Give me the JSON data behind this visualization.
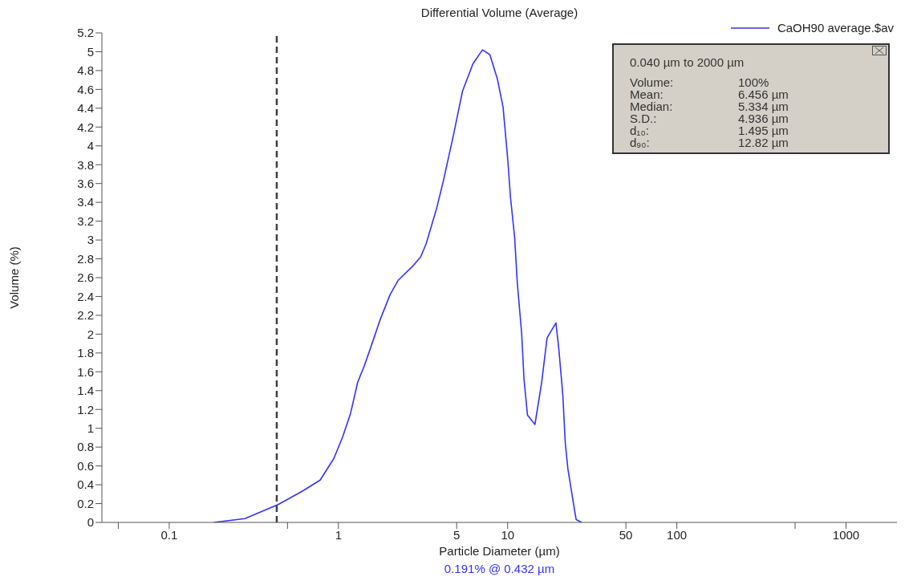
{
  "chart_data": {
    "type": "line",
    "title": "Differential Volume (Average)",
    "xlabel": "Particle Diameter (µm)",
    "ylabel": "Volume (%)",
    "log": "x",
    "xlim": [
      0.04,
      2000
    ],
    "xticks": [
      {
        "value": 0.05,
        "label": null
      },
      0.1,
      {
        "value": 0.5,
        "label": null
      },
      1,
      5,
      10,
      50,
      100,
      {
        "value": 500,
        "label": null
      },
      1000
    ],
    "ylim": [
      0,
      5.2
    ],
    "yticks": [
      0,
      0.2,
      0.4,
      0.6,
      0.8,
      1,
      1.2,
      1.4,
      1.6,
      1.8,
      2,
      2.2,
      2.4,
      2.6,
      2.8,
      3,
      3.2,
      3.4,
      3.6,
      3.8,
      4,
      4.2,
      4.4,
      4.6,
      4.8,
      5,
      5.2
    ],
    "grid": false,
    "legend": "top right",
    "marker": "none",
    "line_style": "solid",
    "series": [
      {
        "name": "CaOH90 average.$av",
        "color": "#3333ff",
        "x": [
          0.183,
          0.28,
          0.44,
          0.61,
          0.78,
          0.94,
          1.06,
          1.18,
          1.3,
          1.42,
          1.58,
          1.77,
          2.02,
          2.25,
          2.74,
          3.06,
          3.3,
          3.81,
          4.16,
          4.74,
          5.41,
          6.23,
          7.1,
          7.85,
          8.7,
          9.4,
          10,
          10.4,
          11,
          11.4,
          12.1,
          12.5,
          13.1,
          14.5,
          15.9,
          17.1,
          19.3,
          20.1,
          21.2,
          21.9,
          22.7,
          24.5,
          25.4,
          27.4
        ],
        "values": [
          0,
          0.04,
          0.19,
          0.33,
          0.45,
          0.68,
          0.91,
          1.16,
          1.49,
          1.66,
          1.9,
          2.16,
          2.42,
          2.57,
          2.72,
          2.82,
          2.96,
          3.34,
          3.62,
          4.08,
          4.58,
          4.87,
          5.02,
          4.97,
          4.71,
          4.41,
          3.87,
          3.45,
          3.03,
          2.55,
          2.01,
          1.52,
          1.14,
          1.04,
          1.49,
          1.96,
          2.12,
          1.83,
          1.35,
          0.85,
          0.57,
          0.2,
          0.03,
          0
        ]
      }
    ],
    "ref_lines": [
      {
        "axis": "x",
        "value": 0.432,
        "color": "#404040",
        "line_style": "dashed"
      }
    ],
    "annotations": [
      "0.191% @ 0.432 µm",
      "0.040 µm to 2000 µm",
      "Volume: 100%",
      "Mean: 6.456 µm",
      "Median: 5.334 µm",
      "S.D.: 4.936 µm",
      "d₁₀: 1.495 µm",
      "d₉₀: 12.82 µm"
    ]
  }
}
